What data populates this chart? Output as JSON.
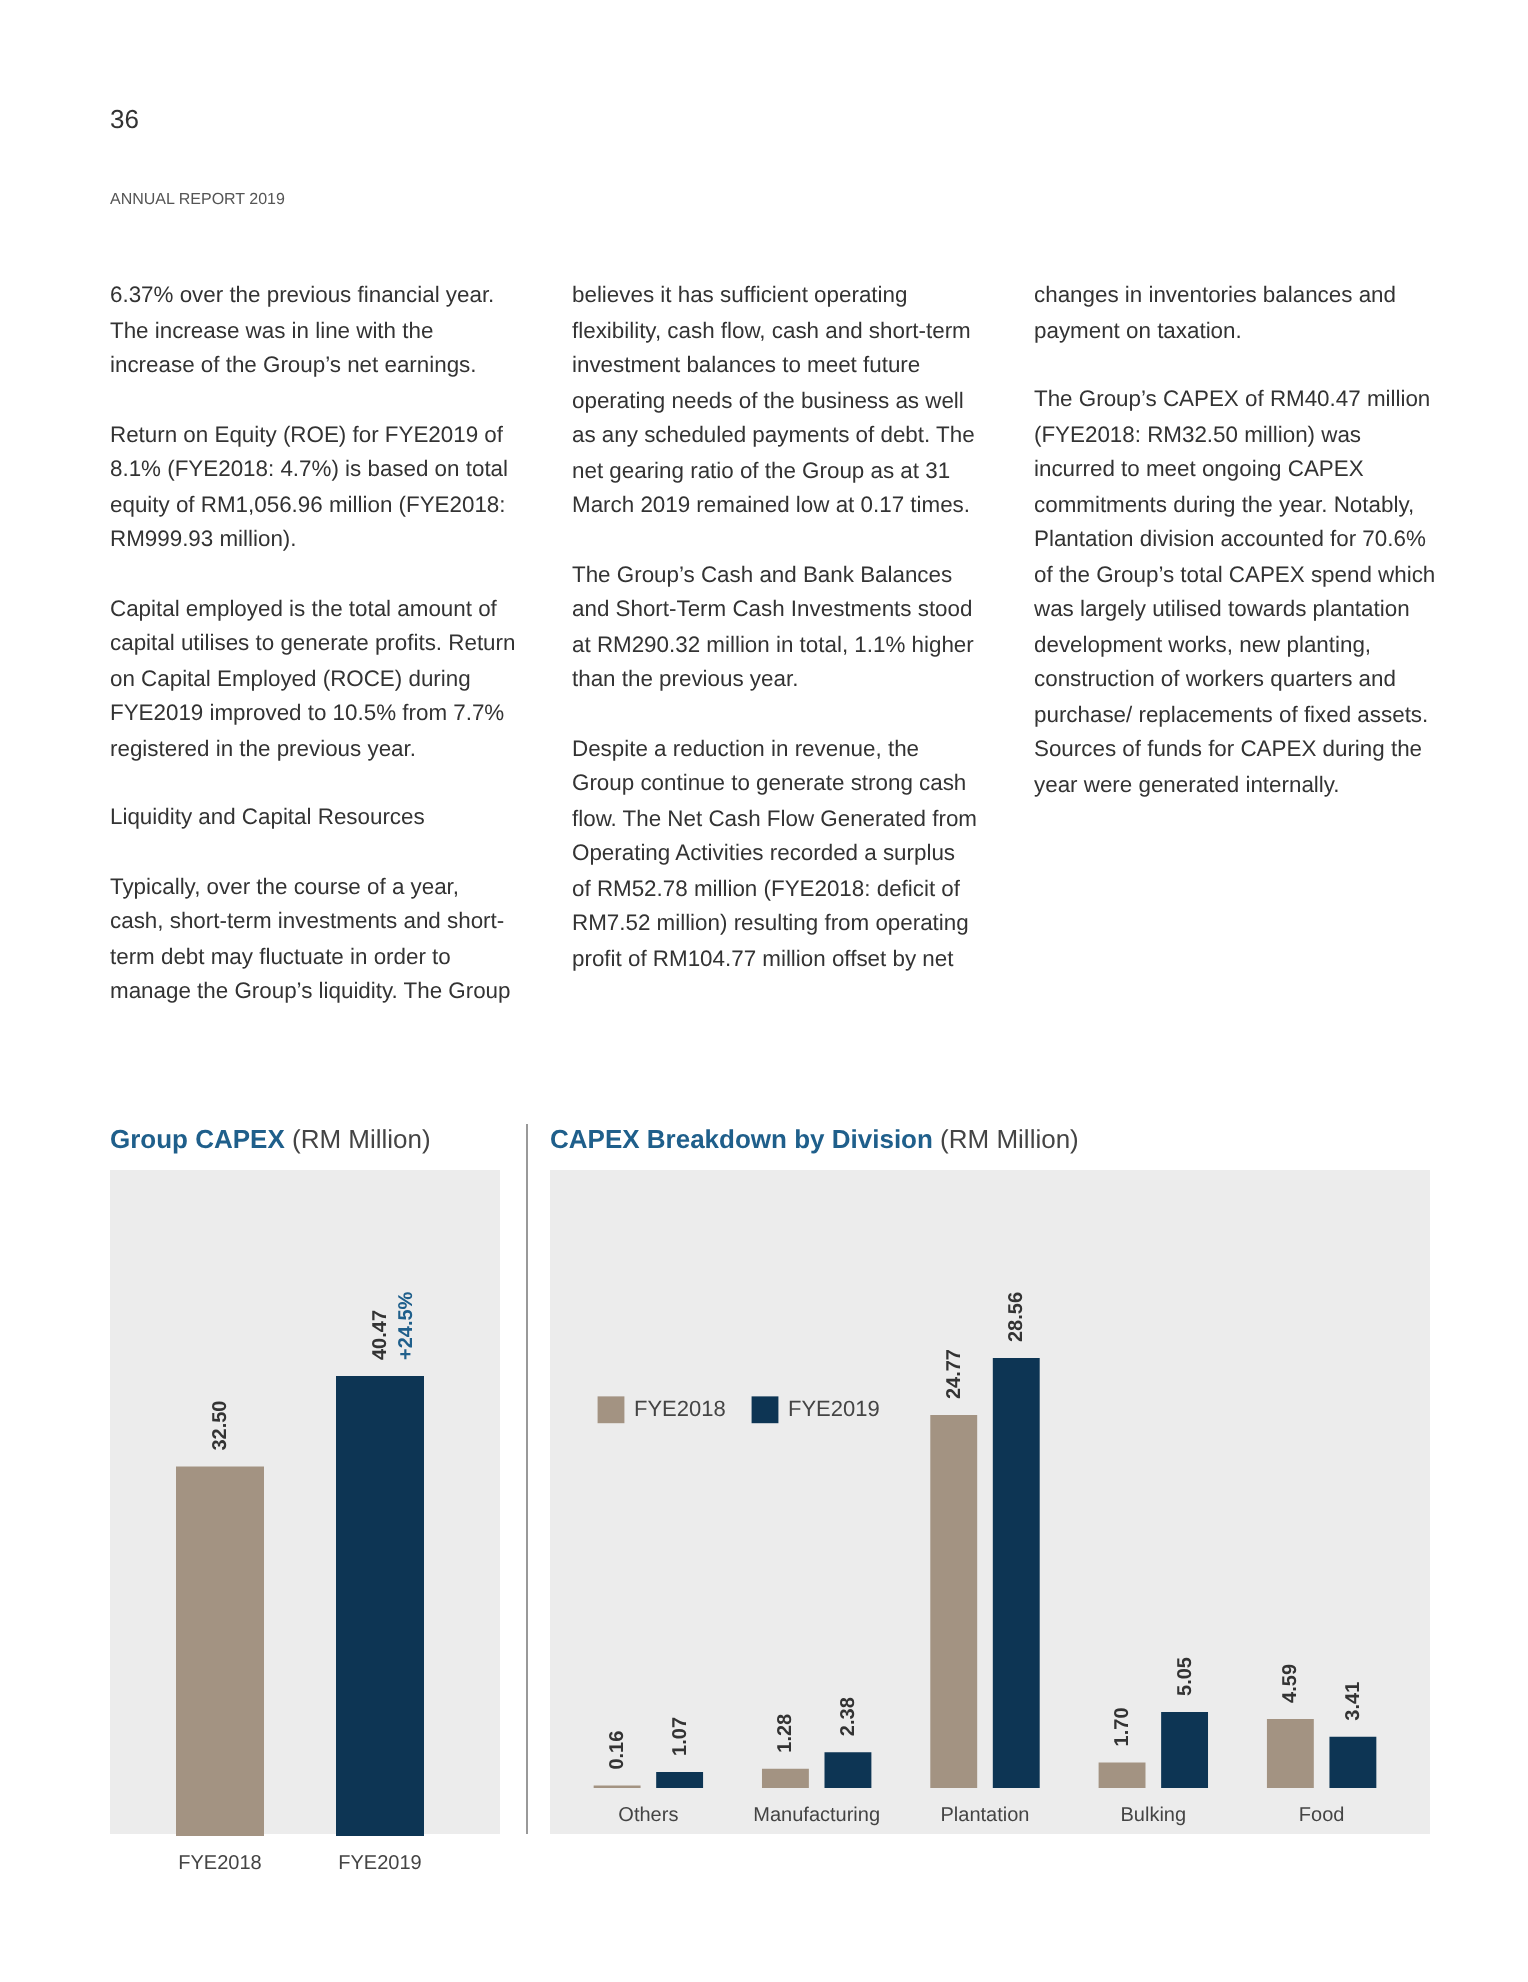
{
  "chart_data": [
    {
      "type": "bar",
      "title": "Group CAPEX",
      "subtitle": "(RM Million)",
      "categories": [
        "FYE2018",
        "FYE2019"
      ],
      "values": [
        32.5,
        40.47
      ],
      "colors": [
        "#a39382",
        "#0d3554"
      ],
      "value_labels": [
        "32.50",
        "40.47"
      ],
      "annotations": [
        "36",
        "ANNUAL REPORT 2019",
        "6.37% over the previous financial year. The increase was in line with the increase of the Group’s net earnings.",
        "Return on Equity (ROE) for FYE2019 of 8.1% (FYE2018: 4.7%) is based on total equity of RM1,056.96 million (FYE2018: RM999.93 million).",
        "Capital employed is the total amount of capital utilises to generate profits. Return on Capital Employed (ROCE) during FYE2019 improved to 10.5% from 7.7% registered in the previous year.",
        "Liquidity and Capital Resources",
        "Typically, over the course of a year, cash, short-term investments and short-term debt may fluctuate in order to manage the Group’s liquidity. The Group believes it has sufficient operating flexibility, cash flow, cash and short-term investment balances to meet future operating needs of the business as well as any scheduled payments of debt. The net gearing ratio of the Group as at 31 March 2019 remained low at 0.17 times.",
        "The Group’s Cash and Bank Balances and Short-Term Cash Investments stood at RM290.32 million in total, 1.1% higher than the previous year.",
        "Despite a reduction in revenue, the Group continue to generate strong cash flow. The Net Cash Flow Generated from Operating Activities recorded a surplus of RM52.78 million (FYE2018: deficit of RM7.52 million) resulting from operating profit of RM104.77 million offset by net changes in inventories balances and payment on taxation.",
        "The Group’s CAPEX of RM40.47 million (FYE2018: RM32.50 million) was incurred to meet ongoing CAPEX commitments during the year. Notably, Plantation division accounted for 70.6% of the Group’s total CAPEX spend which was largely utilised towards plantation development works, new planting, construction of workers quarters and purchase/ replacements of fixed assets. Sources of funds for CAPEX during the year were generated internally.",
        {
          "text": "+24.5%",
          "x": "FYE2019",
          "y": 40.47
        }
      ]
    },
    {
      "type": "bar",
      "title": "CAPEX Breakdown by Division",
      "subtitle": "(RM Million)",
      "categories": [
        "Others",
        "Manufacturing",
        "Plantation",
        "Bulking",
        "Food"
      ],
      "legend": "top left",
      "series": [
        {
          "name": "FYE2018",
          "color": "#a39382",
          "values": [
            0.16,
            1.28,
            24.77,
            1.7,
            4.59
          ],
          "value_labels": [
            "0.16",
            "1.28",
            "24.77",
            "1.70",
            "4.59"
          ]
        },
        {
          "name": "FYE2019",
          "color": "#0d3554",
          "values": [
            1.07,
            2.38,
            28.56,
            5.05,
            3.41
          ],
          "value_labels": [
            "1.07",
            "2.38",
            "28.56",
            "5.05",
            "3.41"
          ]
        }
      ]
    }
  ]
}
